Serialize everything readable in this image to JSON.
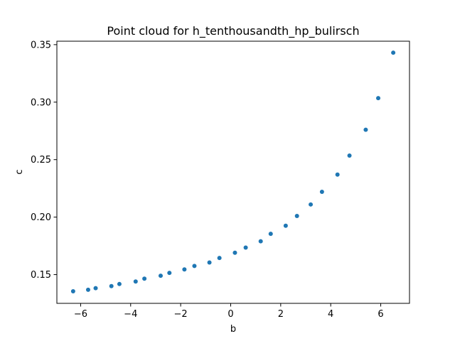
{
  "chart_data": {
    "type": "scatter",
    "title": "Point cloud for h_tenthousandth_hp_bulirsch",
    "xlabel": "b",
    "ylabel": "c",
    "xlim": [
      -6.95,
      7.15
    ],
    "ylim": [
      0.125,
      0.353
    ],
    "xticks": [
      -6,
      -4,
      -2,
      0,
      2,
      4,
      6
    ],
    "xtick_labels": [
      "−6",
      "−4",
      "−2",
      "0",
      "2",
      "4",
      "6"
    ],
    "yticks": [
      0.15,
      0.2,
      0.25,
      0.3,
      0.35
    ],
    "ytick_labels": [
      "0.15",
      "0.20",
      "0.25",
      "0.30",
      "0.35"
    ],
    "grid": false,
    "color": "#1f77b4",
    "points": [
      {
        "x": -6.3,
        "y": 0.1355
      },
      {
        "x": -5.7,
        "y": 0.1368
      },
      {
        "x": -5.4,
        "y": 0.1382
      },
      {
        "x": -4.77,
        "y": 0.14
      },
      {
        "x": -4.45,
        "y": 0.1418
      },
      {
        "x": -3.8,
        "y": 0.144
      },
      {
        "x": -3.45,
        "y": 0.1465
      },
      {
        "x": -2.8,
        "y": 0.149
      },
      {
        "x": -2.45,
        "y": 0.1515
      },
      {
        "x": -1.85,
        "y": 0.1545
      },
      {
        "x": -1.45,
        "y": 0.1575
      },
      {
        "x": -0.85,
        "y": 0.1605
      },
      {
        "x": -0.45,
        "y": 0.1645
      },
      {
        "x": 0.17,
        "y": 0.169
      },
      {
        "x": 0.6,
        "y": 0.1735
      },
      {
        "x": 1.2,
        "y": 0.179
      },
      {
        "x": 1.6,
        "y": 0.1855
      },
      {
        "x": 2.2,
        "y": 0.1925
      },
      {
        "x": 2.65,
        "y": 0.201
      },
      {
        "x": 3.2,
        "y": 0.211
      },
      {
        "x": 3.65,
        "y": 0.222
      },
      {
        "x": 4.27,
        "y": 0.237
      },
      {
        "x": 4.75,
        "y": 0.2535
      },
      {
        "x": 5.4,
        "y": 0.276
      },
      {
        "x": 5.9,
        "y": 0.3035
      },
      {
        "x": 6.5,
        "y": 0.343
      }
    ]
  }
}
